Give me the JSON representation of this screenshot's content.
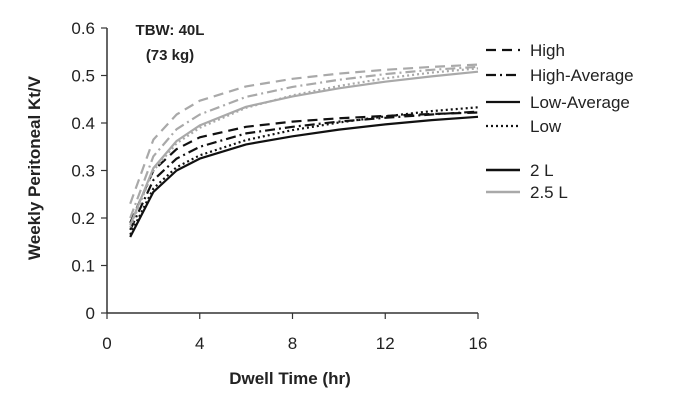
{
  "chart_data": {
    "type": "line",
    "title": "",
    "annotation": [
      "TBW: 40L",
      "(73 kg)"
    ],
    "xlabel": "Dwell Time (hr)",
    "ylabel": "Weekly Peritoneal Kt/V",
    "xlim": [
      0,
      16
    ],
    "ylim": [
      0,
      0.6
    ],
    "xticks": [
      0,
      4,
      8,
      12,
      16
    ],
    "yticks": [
      0,
      0.1,
      0.2,
      0.3,
      0.4,
      0.5,
      0.6
    ],
    "xtick_labels": [
      "0",
      "4",
      "8",
      "12",
      "16"
    ],
    "ytick_labels": [
      "0",
      "0.1",
      "0.2",
      "0.3",
      "0.4",
      "0.5",
      "0.6"
    ],
    "x": [
      1,
      2,
      3,
      4,
      6,
      8,
      10,
      12,
      14,
      16
    ],
    "series": [
      {
        "name": "High 2 L",
        "transport": "High",
        "volume": "2 L",
        "dash": "dashed",
        "color": "#111111",
        "values": [
          0.19,
          0.3,
          0.345,
          0.37,
          0.392,
          0.403,
          0.41,
          0.415,
          0.419,
          0.422
        ]
      },
      {
        "name": "High-Average 2 L",
        "transport": "High-Average",
        "volume": "2 L",
        "dash": "dashdot",
        "color": "#111111",
        "values": [
          0.175,
          0.28,
          0.325,
          0.35,
          0.378,
          0.392,
          0.403,
          0.411,
          0.418,
          0.424
        ]
      },
      {
        "name": "Low-Average 2 L",
        "transport": "Low-Average",
        "volume": "2 L",
        "dash": "solid",
        "color": "#111111",
        "values": [
          0.16,
          0.255,
          0.3,
          0.325,
          0.355,
          0.372,
          0.386,
          0.397,
          0.406,
          0.413
        ]
      },
      {
        "name": "Low 2 L",
        "transport": "Low",
        "volume": "2 L",
        "dash": "dotted",
        "color": "#111111",
        "values": [
          0.165,
          0.262,
          0.307,
          0.332,
          0.364,
          0.385,
          0.401,
          0.414,
          0.425,
          0.433
        ]
      },
      {
        "name": "High 2.5 L",
        "transport": "High",
        "volume": "2.5 L",
        "dash": "dashed",
        "color": "#a9a9a9",
        "values": [
          0.23,
          0.365,
          0.418,
          0.447,
          0.477,
          0.493,
          0.504,
          0.512,
          0.518,
          0.523
        ]
      },
      {
        "name": "High-Average 2.5 L",
        "transport": "High-Average",
        "volume": "2.5 L",
        "dash": "dashdot",
        "color": "#a9a9a9",
        "values": [
          0.2,
          0.33,
          0.387,
          0.418,
          0.455,
          0.476,
          0.491,
          0.503,
          0.512,
          0.518
        ]
      },
      {
        "name": "Low-Average 2.5 L",
        "transport": "Low-Average",
        "volume": "2.5 L",
        "dash": "solid",
        "color": "#a9a9a9",
        "values": [
          0.185,
          0.305,
          0.362,
          0.395,
          0.434,
          0.456,
          0.473,
          0.487,
          0.498,
          0.508
        ]
      },
      {
        "name": "Low 2.5 L",
        "transport": "Low",
        "volume": "2.5 L",
        "dash": "dotted",
        "color": "#a9a9a9",
        "values": [
          0.18,
          0.3,
          0.357,
          0.39,
          0.432,
          0.458,
          0.478,
          0.494,
          0.506,
          0.515
        ]
      }
    ],
    "legend": {
      "placement": "right",
      "style_entries": [
        {
          "label": "High",
          "dash": "dashed"
        },
        {
          "label": "High-Average",
          "dash": "dashdot"
        },
        {
          "label": "Low-Average",
          "dash": "solid"
        },
        {
          "label": "Low",
          "dash": "dotted"
        }
      ],
      "color_entries": [
        {
          "label": "2 L",
          "color": "#111111"
        },
        {
          "label": "2.5 L",
          "color": "#a9a9a9"
        }
      ]
    }
  }
}
